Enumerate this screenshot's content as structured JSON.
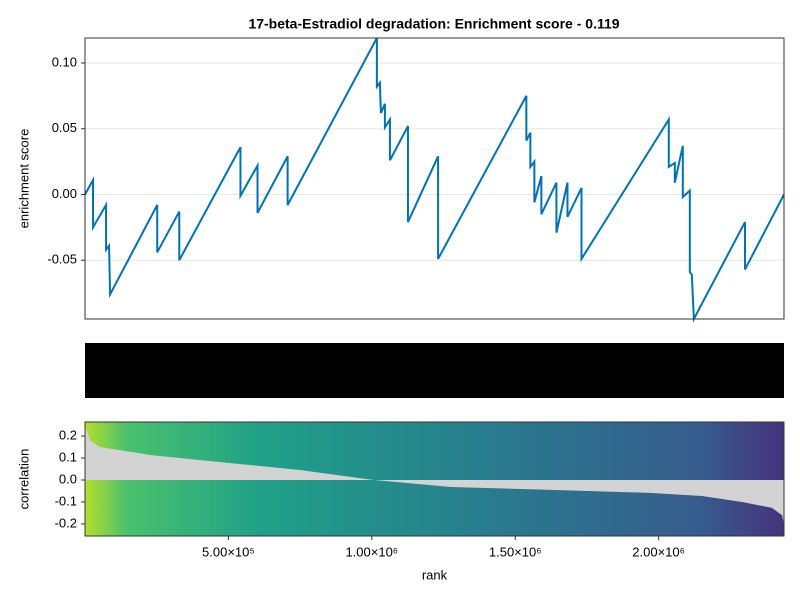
{
  "chart_data": [
    {
      "type": "line",
      "title": "17-beta-Estradiol degradation: Enrichment score - 0.119",
      "ylabel": "enrichment score",
      "color": "#0072b2",
      "grid": true,
      "xlim": [
        0,
        2437000
      ],
      "ylim": [
        -0.0947,
        0.119
      ],
      "yticks": [
        {
          "value": 0.1,
          "label": "0.10"
        },
        0.05,
        {
          "value": 0,
          "label": "0.00"
        },
        -0.05
      ],
      "x": [
        0,
        28000,
        28000,
        73400,
        73400,
        83900,
        87400,
        251800,
        251800,
        328700,
        328700,
        542000,
        542000,
        601500,
        601500,
        706400,
        706400,
        1017600,
        1017600,
        1028100,
        1031600,
        1045600,
        1045600,
        1063100,
        1063100,
        1126000,
        1126000,
        1231000,
        1231000,
        1538700,
        1538700,
        1552700,
        1552700,
        1566700,
        1566700,
        1591100,
        1591100,
        1643600,
        1643600,
        1682100,
        1682100,
        1731000,
        1731000,
        2035300,
        2035300,
        2056300,
        2056300,
        2084200,
        2084200,
        2108700,
        2108700,
        2115700,
        2122700,
        2301000,
        2301000,
        2437000
      ],
      "values": [
        0,
        0.011,
        -0.025,
        -0.008,
        -0.042,
        -0.039,
        -0.076,
        -0.008,
        -0.044,
        -0.013,
        -0.05,
        0.036,
        -0.001,
        0.022,
        -0.014,
        0.029,
        -0.008,
        0.119,
        0.082,
        0.085,
        0.062,
        0.069,
        0.051,
        0.057,
        0.026,
        0.052,
        -0.021,
        0.029,
        -0.049,
        0.075,
        0.041,
        0.047,
        0.021,
        0.025,
        -0.006,
        0.014,
        -0.015,
        0.009,
        -0.029,
        0.009,
        -0.017,
        0.005,
        -0.049,
        0.057,
        0.021,
        0.024,
        0.009,
        0.037,
        -0.002,
        0.003,
        -0.059,
        -0.061,
        -0.0947,
        -0.021,
        -0.057,
        0
      ]
    },
    {
      "type": "area",
      "ylabel": "correlation",
      "xlabel": "rank",
      "color": "#d3d3d3",
      "grid": false,
      "xlim": [
        0,
        2437000
      ],
      "ylim": [
        -0.255,
        0.264
      ],
      "yticks": [
        0.2,
        0.1,
        {
          "value": 0,
          "label": "0.0"
        },
        -0.1,
        -0.2
      ],
      "xticks": [
        {
          "value": 500000,
          "label": "5.00×10⁵"
        },
        {
          "value": 1000000,
          "label": "1.00×10⁶"
        },
        {
          "value": 1500000,
          "label": "1.50×10⁶"
        },
        {
          "value": 2000000,
          "label": "2.00×10⁶"
        }
      ],
      "x": [
        0,
        17500,
        52500,
        227000,
        507000,
        752000,
        1007000,
        1276000,
        1626000,
        1976000,
        2151000,
        2291000,
        2395000,
        2430000,
        2437000
      ],
      "values": [
        0.25,
        0.18,
        0.15,
        0.114,
        0.077,
        0.045,
        0,
        -0.032,
        -0.045,
        -0.059,
        -0.073,
        -0.1,
        -0.127,
        -0.16,
        -0.2
      ]
    }
  ]
}
